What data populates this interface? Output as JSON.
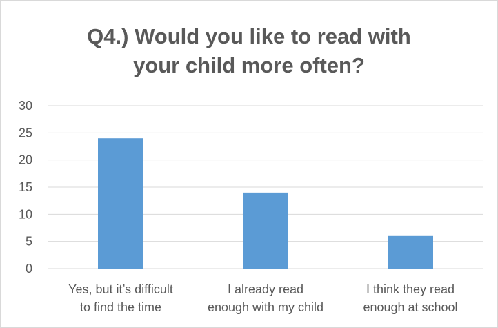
{
  "chart_data": {
    "type": "bar",
    "title_lines": [
      "Q4.) Would you like to read with",
      "your child more often?"
    ],
    "categories": [
      [
        "Yes, but it’s difficult",
        "to find the time"
      ],
      [
        "I already read",
        "enough with my child"
      ],
      [
        "I think they read",
        "enough at school"
      ]
    ],
    "values": [
      24,
      14,
      6
    ],
    "ylim": [
      0,
      30
    ],
    "yticks": [
      0,
      5,
      10,
      15,
      20,
      25,
      30
    ],
    "grid": true,
    "bar_color": "#5b9bd5",
    "grid_color": "#d9d9d9",
    "text_color": "#595959"
  }
}
